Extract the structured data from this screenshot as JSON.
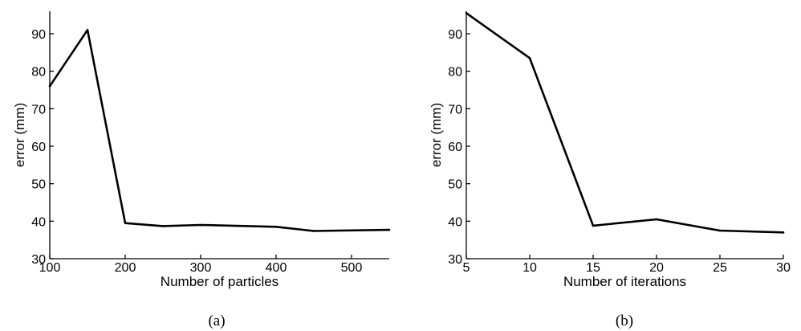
{
  "chart_data": [
    {
      "type": "line",
      "caption": "(a)",
      "xlabel": "Number of particles",
      "ylabel": "error (mm)",
      "xlim": [
        100,
        550
      ],
      "ylim": [
        30,
        96
      ],
      "xticks": [
        100,
        200,
        300,
        400,
        500
      ],
      "yticks": [
        30,
        40,
        50,
        60,
        70,
        80,
        90
      ],
      "grid": false,
      "series": [
        {
          "x": [
            100,
            150,
            200,
            250,
            300,
            400,
            450,
            550
          ],
          "y": [
            76,
            91,
            39.5,
            38.7,
            39,
            38.5,
            37.4,
            37.7
          ]
        }
      ]
    },
    {
      "type": "line",
      "caption": "(b)",
      "xlabel": "Number of iterations",
      "ylabel": "error (mm)",
      "xlim": [
        5,
        30
      ],
      "ylim": [
        30,
        96
      ],
      "xticks": [
        5,
        10,
        15,
        20,
        25,
        30
      ],
      "yticks": [
        30,
        40,
        50,
        60,
        70,
        80,
        90
      ],
      "grid": false,
      "series": [
        {
          "x": [
            5,
            10,
            15,
            20,
            25,
            30
          ],
          "y": [
            95.5,
            83.5,
            38.8,
            40.5,
            37.5,
            37
          ]
        }
      ]
    }
  ]
}
